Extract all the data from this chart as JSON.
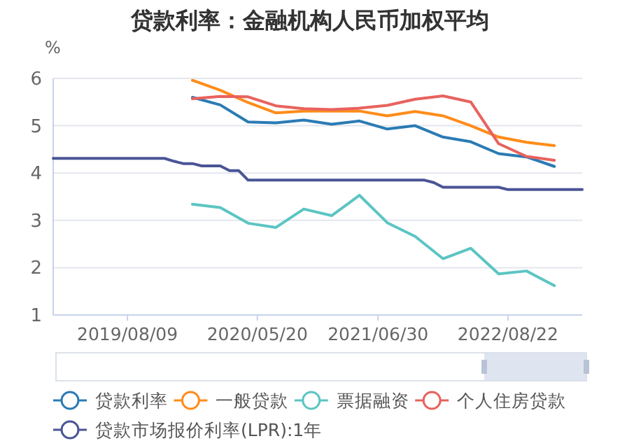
{
  "chart_data": {
    "type": "line",
    "title": "贷款利率：金融机构人民币加权平均",
    "ylabel": "%",
    "categories": [
      null,
      null,
      null,
      null,
      null,
      null,
      null,
      null,
      "2019/08/09",
      null,
      null,
      null,
      null,
      null,
      null,
      null,
      null,
      null,
      null,
      null,
      null,
      null,
      "2020/05/20",
      null,
      null,
      null,
      null,
      null,
      null,
      null,
      null,
      null,
      null,
      null,
      null,
      "2021/06/30",
      null,
      null,
      null,
      null,
      null,
      null,
      null,
      null,
      null,
      null,
      null,
      null,
      null,
      "2022/08/22",
      null,
      null,
      null,
      null,
      null,
      null,
      null,
      null
    ],
    "ylim": [
      1,
      6
    ],
    "yticks": [
      1,
      2,
      3,
      4,
      5,
      6
    ],
    "grid": "y",
    "legend": "bottom",
    "marker": "none",
    "line_style": "solid",
    "series": [
      {
        "name": "贷款利率",
        "color": "#2b7bb4",
        "values": [
          null,
          null,
          null,
          null,
          null,
          null,
          null,
          null,
          null,
          null,
          null,
          null,
          null,
          null,
          null,
          5.6,
          null,
          null,
          5.44,
          null,
          null,
          5.08,
          null,
          null,
          5.06,
          null,
          null,
          5.12,
          null,
          null,
          5.03,
          null,
          null,
          5.1,
          null,
          null,
          4.93,
          null,
          null,
          5.0,
          null,
          null,
          4.76,
          null,
          null,
          4.66,
          null,
          null,
          4.41,
          null,
          null,
          4.34,
          null,
          null,
          4.14,
          null,
          null,
          null
        ]
      },
      {
        "name": "一般贷款",
        "color": "#ff8c1a",
        "values": [
          null,
          null,
          null,
          null,
          null,
          null,
          null,
          null,
          null,
          null,
          null,
          null,
          null,
          null,
          null,
          5.96,
          null,
          null,
          5.75,
          null,
          null,
          5.49,
          null,
          null,
          5.27,
          null,
          null,
          5.31,
          null,
          null,
          5.31,
          null,
          null,
          5.31,
          null,
          null,
          5.21,
          null,
          null,
          5.3,
          null,
          null,
          5.21,
          null,
          null,
          5.0,
          null,
          null,
          4.76,
          null,
          null,
          4.65,
          null,
          null,
          4.58,
          null,
          null,
          null
        ]
      },
      {
        "name": "票据融资",
        "color": "#5bc5c3",
        "values": [
          null,
          null,
          null,
          null,
          null,
          null,
          null,
          null,
          null,
          null,
          null,
          null,
          null,
          null,
          null,
          3.34,
          null,
          null,
          3.27,
          null,
          null,
          2.94,
          null,
          null,
          2.85,
          null,
          null,
          3.24,
          null,
          null,
          3.1,
          null,
          null,
          3.53,
          null,
          null,
          2.95,
          null,
          null,
          2.66,
          null,
          null,
          2.19,
          null,
          null,
          2.41,
          null,
          null,
          1.87,
          null,
          null,
          1.93,
          null,
          null,
          1.62,
          null,
          null,
          null
        ]
      },
      {
        "name": "个人住房贷款",
        "color": "#e8625e",
        "values": [
          null,
          null,
          null,
          null,
          null,
          null,
          null,
          null,
          null,
          null,
          null,
          null,
          null,
          null,
          null,
          5.57,
          null,
          null,
          5.62,
          null,
          null,
          5.61,
          null,
          null,
          5.42,
          null,
          null,
          5.36,
          null,
          null,
          5.34,
          null,
          null,
          5.37,
          null,
          null,
          5.43,
          null,
          null,
          5.56,
          null,
          null,
          5.63,
          null,
          null,
          5.5,
          null,
          null,
          4.62,
          null,
          null,
          4.35,
          null,
          null,
          4.27,
          null,
          null,
          null
        ]
      },
      {
        "name": "贷款市场报价利率(LPR):1年",
        "color": "#4a5595",
        "values": [
          4.31,
          4.31,
          4.31,
          4.31,
          4.31,
          4.31,
          4.31,
          4.31,
          4.31,
          4.31,
          4.31,
          4.31,
          4.31,
          4.25,
          4.2,
          4.2,
          4.15,
          4.15,
          4.15,
          4.05,
          4.05,
          3.85,
          3.85,
          3.85,
          3.85,
          3.85,
          3.85,
          3.85,
          3.85,
          3.85,
          3.85,
          3.85,
          3.85,
          3.85,
          3.85,
          3.85,
          3.85,
          3.85,
          3.85,
          3.85,
          3.85,
          3.8,
          3.7,
          3.7,
          3.7,
          3.7,
          3.7,
          3.7,
          3.7,
          3.65,
          3.65,
          3.65,
          3.65,
          3.65,
          3.65,
          3.65,
          3.65,
          3.65
        ]
      }
    ]
  }
}
